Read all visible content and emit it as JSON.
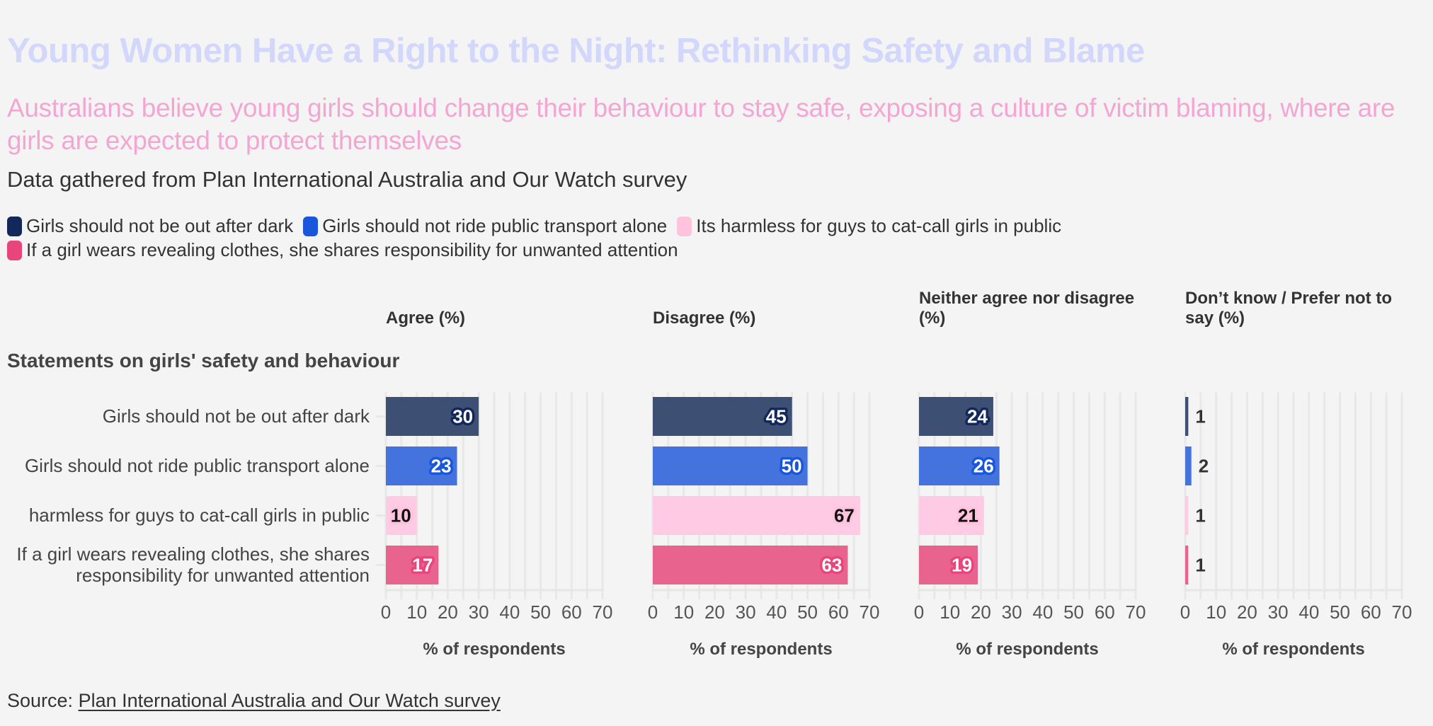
{
  "title": "Young Women Have a Right to the Night: Rethinking Safety and Blame",
  "subtitle": "Australians believe young girls should change their behaviour to stay safe, exposing a culture of victim blaming, where are girls are expected to protect themselves",
  "description": "Data gathered from Plan International Australia and Our Watch survey",
  "legend": [
    {
      "label": "Girls should not be out after dark",
      "color": "#13285a"
    },
    {
      "label": "Girls should not ride public transport alone",
      "color": "#1a56db"
    },
    {
      "label": "Its harmless for guys to cat-call girls in public",
      "color": "#ffc3dd"
    },
    {
      "label": "If a girl wears revealing clothes, she shares responsibility for unwanted attention",
      "color": "#e8457c"
    }
  ],
  "source": {
    "prefix": "Source: ",
    "link_text": "Plan International Australia and Our Watch survey"
  },
  "chart_data": {
    "type": "bar",
    "orientation": "horizontal",
    "facets": "columns",
    "y_axis_title": "Statements on girls' safety and behaviour",
    "categories": [
      "Girls should not be out after dark",
      "Girls should not ride public transport alone",
      "harmless for guys to cat-call girls in public",
      "If a girl wears revealing clothes, she shares responsibility for unwanted attention"
    ],
    "category_label_lines": [
      [
        "Girls should not be out after dark"
      ],
      [
        "Girls should not ride public transport alone"
      ],
      [
        "harmless for guys to cat-call girls in public"
      ],
      [
        "If a girl wears revealing clothes, she shares",
        "responsibility for unwanted attention"
      ]
    ],
    "bar_colors": [
      "#3d4f73",
      "#4573de",
      "#ffcae3",
      "#e8648e"
    ],
    "label_halo_colors": [
      "#13285a",
      "#1a56db",
      "#ffc3dd",
      "#e8457c"
    ],
    "label_text_colors": [
      "#ffffff",
      "#ffffff",
      "#111111",
      "#ffffff"
    ],
    "panels": [
      {
        "title_lines": [
          "Agree (%)"
        ],
        "values": [
          30,
          23,
          10,
          17
        ]
      },
      {
        "title_lines": [
          "Disagree (%)"
        ],
        "values": [
          45,
          50,
          67,
          63
        ]
      },
      {
        "title_lines": [
          "Neither agree nor disagree",
          "(%)"
        ],
        "values": [
          24,
          26,
          21,
          19
        ]
      },
      {
        "title_lines": [
          "Don’t know / Prefer not to",
          "say (%)"
        ],
        "values": [
          1,
          2,
          1,
          1
        ]
      }
    ],
    "xlim": [
      0,
      70
    ],
    "x_ticks": [
      0,
      10,
      20,
      30,
      40,
      50,
      60,
      70
    ],
    "xlabel": "% of respondents",
    "grid": true
  }
}
